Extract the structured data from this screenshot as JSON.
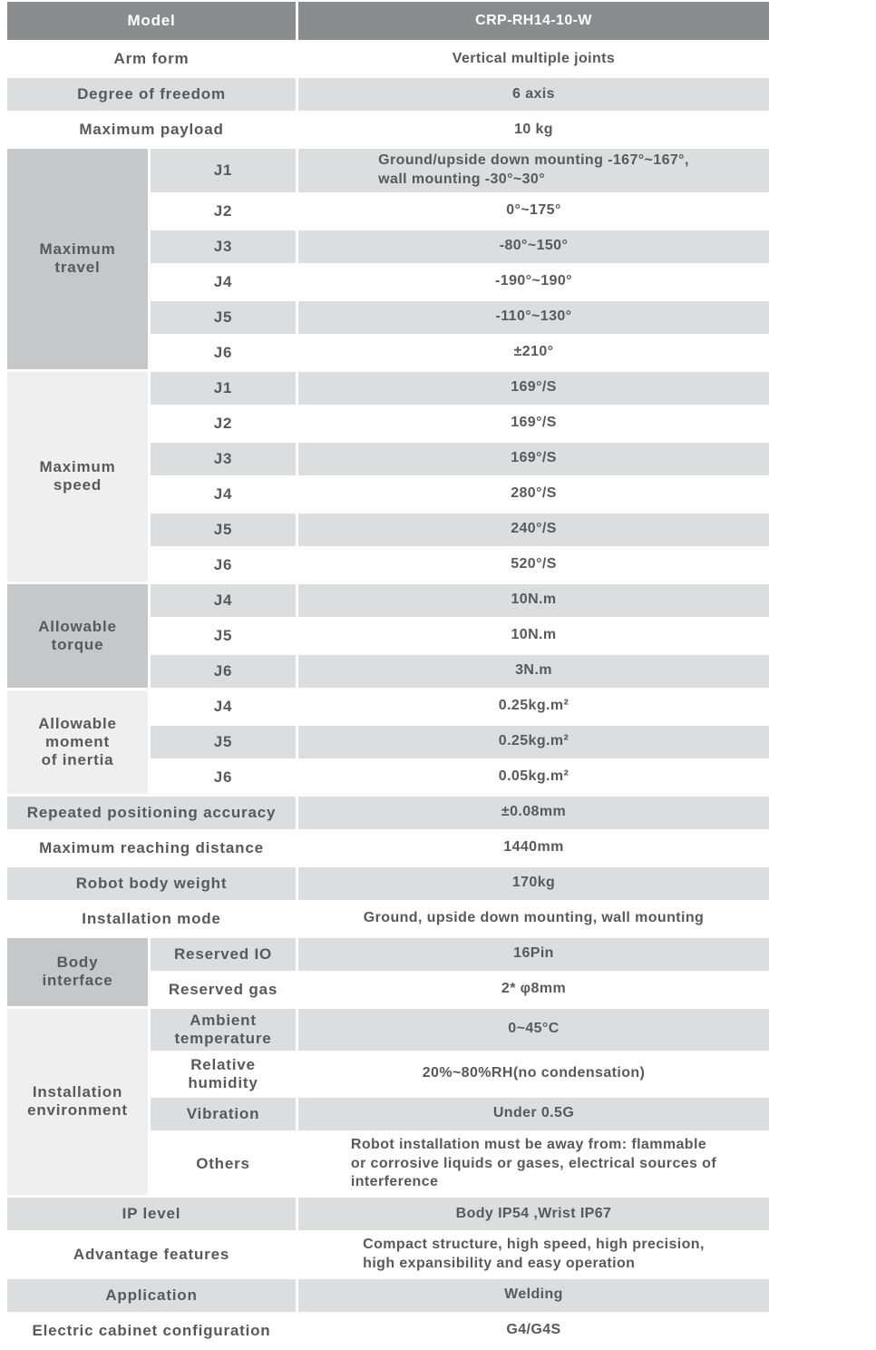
{
  "colors": {
    "header_bg": "#8b8c8e",
    "header_text": "#ffffff",
    "row_gray": "#dcddde",
    "group_dark": "#c6c7c9",
    "group_light": "#efefef",
    "text": "#58595b"
  },
  "header": {
    "label": "Model",
    "value": "CRP-RH14-10-W"
  },
  "rows": [
    {
      "kind": "simple",
      "shade": "white",
      "label": "Arm form",
      "value": "Vertical multiple joints"
    },
    {
      "kind": "simple",
      "shade": "gray",
      "label": "Degree of freedom",
      "value": "6 axis"
    },
    {
      "kind": "simple",
      "shade": "white",
      "label": "Maximum payload",
      "value": "10 kg"
    },
    {
      "kind": "group",
      "shade": "dark",
      "label": [
        "Maximum",
        "travel"
      ],
      "items": [
        {
          "label": "J1",
          "shade": "gray",
          "value": [
            "Ground/upside down mounting -167°~167°,",
            "wall mounting -30°~30°"
          ]
        },
        {
          "label": "J2",
          "shade": "white",
          "value": "0°~175°"
        },
        {
          "label": "J3",
          "shade": "gray",
          "value": "-80°~150°"
        },
        {
          "label": "J4",
          "shade": "white",
          "value": "-190°~190°"
        },
        {
          "label": "J5",
          "shade": "gray",
          "value": "-110°~130°"
        },
        {
          "label": "J6",
          "shade": "white",
          "value": "±210°"
        }
      ]
    },
    {
      "kind": "group",
      "shade": "light",
      "label": [
        "Maximum",
        "speed"
      ],
      "items": [
        {
          "label": "J1",
          "shade": "gray",
          "value": "169°/S"
        },
        {
          "label": "J2",
          "shade": "white",
          "value": "169°/S"
        },
        {
          "label": "J3",
          "shade": "gray",
          "value": "169°/S"
        },
        {
          "label": "J4",
          "shade": "white",
          "value": "280°/S"
        },
        {
          "label": "J5",
          "shade": "gray",
          "value": "240°/S"
        },
        {
          "label": "J6",
          "shade": "white",
          "value": "520°/S"
        }
      ]
    },
    {
      "kind": "group",
      "shade": "dark",
      "label": [
        "Allowable",
        "torque"
      ],
      "items": [
        {
          "label": "J4",
          "shade": "gray",
          "value": "10N.m"
        },
        {
          "label": "J5",
          "shade": "white",
          "value": "10N.m"
        },
        {
          "label": "J6",
          "shade": "gray",
          "value": "3N.m"
        }
      ]
    },
    {
      "kind": "group",
      "shade": "light",
      "label": [
        "Allowable",
        "moment",
        "of inertia"
      ],
      "items": [
        {
          "label": "J4",
          "shade": "white",
          "value": "0.25kg.m²"
        },
        {
          "label": "J5",
          "shade": "gray",
          "value": "0.25kg.m²"
        },
        {
          "label": "J6",
          "shade": "white",
          "value": "0.05kg.m²"
        }
      ]
    },
    {
      "kind": "simple",
      "shade": "gray",
      "label": "Repeated positioning accuracy",
      "value": "±0.08mm"
    },
    {
      "kind": "simple",
      "shade": "white",
      "label": "Maximum reaching distance",
      "value": "1440mm"
    },
    {
      "kind": "simple",
      "shade": "gray",
      "label": "Robot body weight",
      "value": "170kg"
    },
    {
      "kind": "simple",
      "shade": "white",
      "label": "Installation mode",
      "value": "Ground, upside down mounting, wall mounting"
    },
    {
      "kind": "group",
      "shade": "dark",
      "label": [
        "Body",
        "interface"
      ],
      "items": [
        {
          "label": "Reserved IO",
          "shade": "gray",
          "value": "16Pin"
        },
        {
          "label": "Reserved gas",
          "shade": "white",
          "value": "2* φ8mm"
        }
      ]
    },
    {
      "kind": "group",
      "shade": "light",
      "label": [
        "Installation",
        "environment"
      ],
      "items": [
        {
          "label": [
            "Ambient",
            "temperature"
          ],
          "shade": "gray",
          "value": "0~45°C"
        },
        {
          "label": [
            "Relative",
            "humidity"
          ],
          "shade": "white",
          "value": "20%~80%RH(no condensation)"
        },
        {
          "label": "Vibration",
          "shade": "gray",
          "value": "Under 0.5G"
        },
        {
          "label": "Others",
          "shade": "white",
          "value": [
            "Robot installation must be away from: flammable",
            "or corrosive liquids or gases, electrical sources of",
            "interference"
          ]
        }
      ]
    },
    {
      "kind": "simple",
      "shade": "gray",
      "label": "IP level",
      "value": "Body IP54 ,Wrist IP67"
    },
    {
      "kind": "simple",
      "shade": "white",
      "label": "Advantage features",
      "value": [
        "Compact structure, high speed, high precision,",
        "high expansibility and easy operation"
      ]
    },
    {
      "kind": "simple",
      "shade": "gray",
      "label": "Application",
      "value": "Welding"
    },
    {
      "kind": "simple",
      "shade": "white",
      "label": "Electric cabinet configuration",
      "value": "G4/G4S"
    }
  ]
}
